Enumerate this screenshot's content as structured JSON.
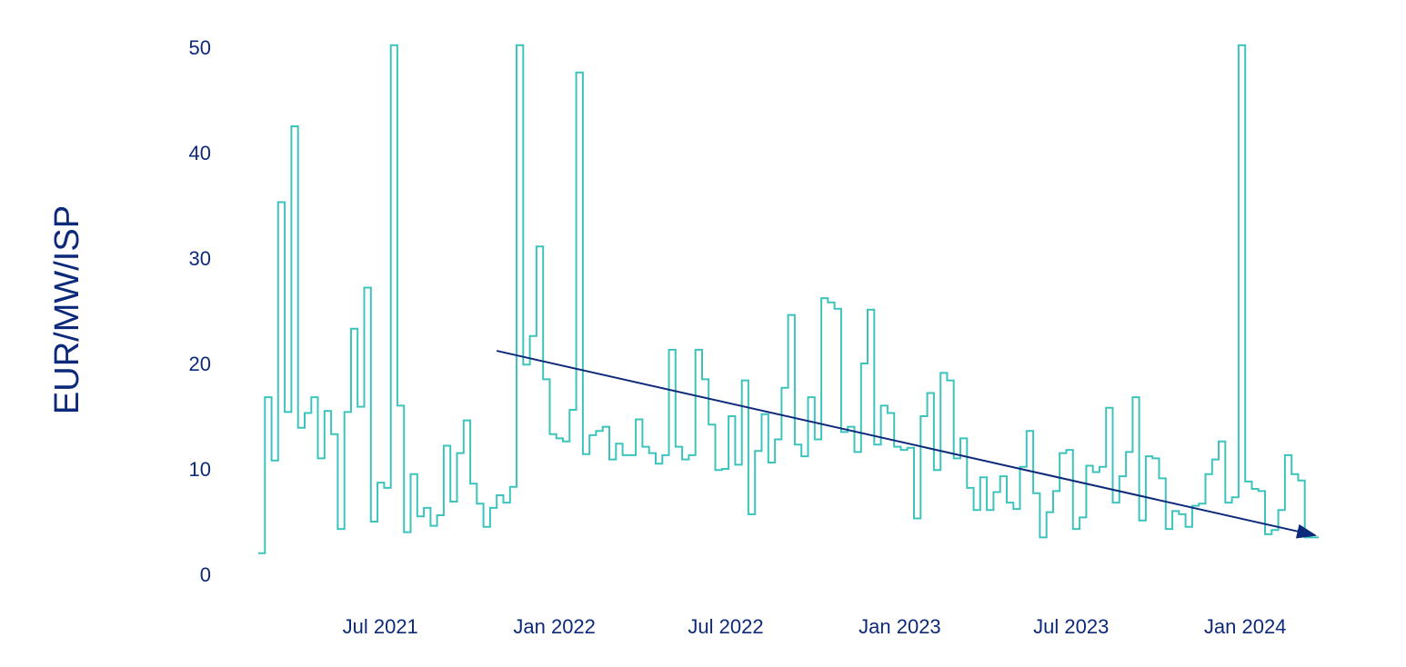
{
  "chart_data": {
    "type": "line",
    "step": true,
    "title": "",
    "xlabel": "",
    "ylabel": "EUR/MW/ISP",
    "ylim": [
      0,
      50
    ],
    "yticks": [
      0,
      10,
      20,
      30,
      40,
      50
    ],
    "xlim": [
      "2021-02-22",
      "2024-03-11"
    ],
    "xticks": [
      {
        "label": "Jul 2021",
        "date": "2021-07-01"
      },
      {
        "label": "Jan 2022",
        "date": "2022-01-01"
      },
      {
        "label": "Jul 2022",
        "date": "2022-07-01"
      },
      {
        "label": "Jan 2023",
        "date": "2023-01-01"
      },
      {
        "label": "Jul 2023",
        "date": "2023-07-01"
      },
      {
        "label": "Jan 2024",
        "date": "2024-01-01"
      }
    ],
    "grid": false,
    "legend": "none",
    "series": [
      {
        "color": "#3cc4bc",
        "x": [
          "2021-02-22",
          "2021-03-01",
          "2021-03-08",
          "2021-03-15",
          "2021-03-22",
          "2021-03-29",
          "2021-04-05",
          "2021-04-12",
          "2021-04-19",
          "2021-04-26",
          "2021-05-03",
          "2021-05-10",
          "2021-05-17",
          "2021-05-24",
          "2021-05-31",
          "2021-06-07",
          "2021-06-14",
          "2021-06-21",
          "2021-06-28",
          "2021-07-05",
          "2021-07-12",
          "2021-07-19",
          "2021-07-26",
          "2021-08-02",
          "2021-08-09",
          "2021-08-16",
          "2021-08-23",
          "2021-08-30",
          "2021-09-06",
          "2021-09-13",
          "2021-09-20",
          "2021-09-27",
          "2021-10-04",
          "2021-10-11",
          "2021-10-18",
          "2021-10-25",
          "2021-11-01",
          "2021-11-08",
          "2021-11-15",
          "2021-11-22",
          "2021-11-29",
          "2021-12-06",
          "2021-12-13",
          "2021-12-20",
          "2021-12-27",
          "2022-01-03",
          "2022-01-10",
          "2022-01-17",
          "2022-01-24",
          "2022-01-31",
          "2022-02-07",
          "2022-02-14",
          "2022-02-21",
          "2022-02-28",
          "2022-03-07",
          "2022-03-14",
          "2022-03-21",
          "2022-03-28",
          "2022-04-04",
          "2022-04-11",
          "2022-04-18",
          "2022-04-25",
          "2022-05-02",
          "2022-05-09",
          "2022-05-16",
          "2022-05-23",
          "2022-05-30",
          "2022-06-06",
          "2022-06-13",
          "2022-06-20",
          "2022-06-27",
          "2022-07-04",
          "2022-07-11",
          "2022-07-18",
          "2022-07-25",
          "2022-08-01",
          "2022-08-08",
          "2022-08-15",
          "2022-08-22",
          "2022-08-29",
          "2022-09-05",
          "2022-09-12",
          "2022-09-19",
          "2022-09-26",
          "2022-10-03",
          "2022-10-10",
          "2022-10-17",
          "2022-10-24",
          "2022-10-31",
          "2022-11-07",
          "2022-11-14",
          "2022-11-21",
          "2022-11-28",
          "2022-12-05",
          "2022-12-12",
          "2022-12-19",
          "2022-12-26",
          "2023-01-02",
          "2023-01-09",
          "2023-01-16",
          "2023-01-23",
          "2023-01-30",
          "2023-02-06",
          "2023-02-13",
          "2023-02-20",
          "2023-02-27",
          "2023-03-06",
          "2023-03-13",
          "2023-03-20",
          "2023-03-27",
          "2023-04-03",
          "2023-04-10",
          "2023-04-17",
          "2023-04-24",
          "2023-05-01",
          "2023-05-08",
          "2023-05-15",
          "2023-05-22",
          "2023-05-29",
          "2023-06-05",
          "2023-06-12",
          "2023-06-19",
          "2023-06-26",
          "2023-07-03",
          "2023-07-10",
          "2023-07-17",
          "2023-07-24",
          "2023-07-31",
          "2023-08-07",
          "2023-08-14",
          "2023-08-21",
          "2023-08-28",
          "2023-09-04",
          "2023-09-11",
          "2023-09-18",
          "2023-09-25",
          "2023-10-02",
          "2023-10-09",
          "2023-10-16",
          "2023-10-23",
          "2023-10-30",
          "2023-11-06",
          "2023-11-13",
          "2023-11-20",
          "2023-11-27",
          "2023-12-04",
          "2023-12-11",
          "2023-12-18",
          "2023-12-25",
          "2024-01-01",
          "2024-01-08",
          "2024-01-15",
          "2024-01-22",
          "2024-01-29",
          "2024-02-05",
          "2024-02-12",
          "2024-02-19",
          "2024-02-26",
          "2024-03-04",
          "2024-03-11"
        ],
        "y": [
          2.0,
          16.8,
          10.8,
          35.3,
          15.4,
          42.5,
          13.9,
          15.3,
          16.8,
          11.0,
          15.5,
          13.3,
          4.3,
          15.4,
          23.3,
          15.9,
          27.2,
          5.0,
          8.7,
          8.2,
          50.2,
          16.0,
          4.0,
          9.5,
          5.5,
          6.3,
          4.6,
          5.6,
          12.2,
          6.9,
          11.5,
          14.6,
          8.6,
          6.7,
          4.5,
          6.3,
          7.5,
          6.8,
          8.3,
          50.2,
          19.9,
          22.6,
          31.1,
          18.5,
          13.3,
          12.9,
          12.6,
          15.6,
          47.6,
          11.4,
          13.2,
          13.6,
          14.0,
          10.9,
          12.4,
          11.3,
          11.3,
          14.7,
          12.1,
          11.5,
          10.5,
          11.3,
          21.3,
          12.1,
          10.9,
          11.3,
          21.3,
          18.5,
          14.2,
          9.9,
          10.0,
          15.0,
          10.4,
          18.4,
          5.7,
          11.7,
          15.2,
          10.6,
          12.8,
          17.7,
          24.6,
          12.3,
          11.2,
          16.8,
          12.8,
          26.2,
          25.8,
          25.2,
          13.5,
          14.0,
          11.6,
          20.0,
          25.1,
          12.3,
          16.0,
          15.3,
          12.1,
          11.8,
          12.0,
          5.3,
          15.0,
          17.2,
          9.9,
          19.1,
          18.4,
          11.0,
          12.9,
          8.2,
          6.1,
          9.2,
          6.1,
          7.8,
          9.3,
          6.8,
          6.2,
          10.2,
          13.6,
          7.7,
          3.5,
          5.9,
          7.9,
          11.5,
          11.8,
          4.3,
          5.4,
          10.3,
          9.7,
          10.2,
          15.8,
          6.8,
          9.3,
          11.6,
          16.8,
          5.1,
          11.2,
          11.0,
          9.1,
          4.3,
          6.0,
          5.7,
          4.5,
          6.5,
          6.7,
          9.5,
          10.9,
          12.6,
          6.8,
          7.3,
          50.2,
          8.8,
          8.1,
          7.9,
          3.8,
          4.2,
          6.1,
          11.3,
          9.5,
          8.9,
          3.5,
          3.5
        ]
      }
    ],
    "trend_arrow": {
      "color": "#0d2a7a",
      "from": {
        "x": "2021-11-01",
        "y": 21.2
      },
      "to": {
        "x": "2024-03-15",
        "y": 3.7
      }
    }
  }
}
